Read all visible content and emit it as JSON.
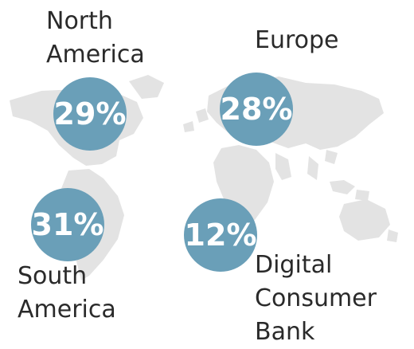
{
  "chart_data": {
    "type": "bubble-map",
    "title": "",
    "unit": "%",
    "bubble_color": "#6a9fb8",
    "map_color": "#e3e3e3",
    "regions": [
      {
        "label_lines": [
          "North",
          "America"
        ],
        "value": 29
      },
      {
        "label_lines": [
          "Europe"
        ],
        "value": 28
      },
      {
        "label_lines": [
          "South",
          "America"
        ],
        "value": 31
      },
      {
        "label_lines": [
          "Digital",
          "Consumer",
          "Bank"
        ],
        "value": 12
      }
    ]
  }
}
